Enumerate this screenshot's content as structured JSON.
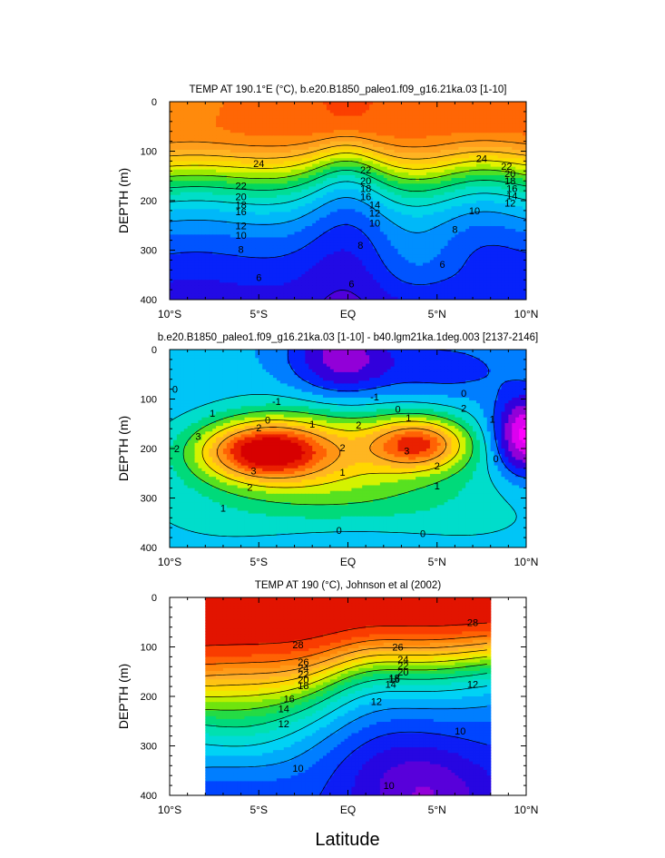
{
  "figure": {
    "xlabel": "Latitude"
  },
  "chart_data": [
    {
      "type": "heatmap",
      "title": "TEMP AT 190.1°E (°C), b.e20.B1850_paleo1.f09_g16.21ka.03 [1-10]",
      "ylabel": "DEPTH (m)",
      "xlim": [
        -10,
        10
      ],
      "ylim": [
        0,
        400
      ],
      "y_inverted": true,
      "x_ticks": [
        -10,
        -5,
        0,
        5,
        10
      ],
      "x_tick_labels": [
        "10°S",
        "5°S",
        "EQ",
        "5°N",
        "10°N"
      ],
      "y_ticks": [
        0,
        100,
        200,
        300,
        400
      ],
      "colorscale": "rainbow",
      "vmin": 4,
      "vmax": 28,
      "contour_levels": [
        6,
        8,
        10,
        12,
        14,
        16,
        18,
        20,
        22,
        24
      ],
      "contour_labels": [
        {
          "text": "24",
          "x": -5,
          "y": 125
        },
        {
          "text": "22",
          "x": -6,
          "y": 170
        },
        {
          "text": "20",
          "x": -6,
          "y": 192
        },
        {
          "text": "18",
          "x": -6,
          "y": 208
        },
        {
          "text": "16",
          "x": -6,
          "y": 222
        },
        {
          "text": "12",
          "x": -6,
          "y": 250
        },
        {
          "text": "10",
          "x": -6,
          "y": 270
        },
        {
          "text": "8",
          "x": -6,
          "y": 298
        },
        {
          "text": "6",
          "x": -5,
          "y": 355
        },
        {
          "text": "22",
          "x": 1,
          "y": 138
        },
        {
          "text": "20",
          "x": 1,
          "y": 160
        },
        {
          "text": "18",
          "x": 1,
          "y": 175
        },
        {
          "text": "16",
          "x": 1,
          "y": 192
        },
        {
          "text": "14",
          "x": 1.5,
          "y": 208
        },
        {
          "text": "12",
          "x": 1.5,
          "y": 225
        },
        {
          "text": "10",
          "x": 1.5,
          "y": 245
        },
        {
          "text": "8",
          "x": 0.7,
          "y": 290
        },
        {
          "text": "6",
          "x": 0.2,
          "y": 368
        },
        {
          "text": "24",
          "x": 7.5,
          "y": 115
        },
        {
          "text": "22",
          "x": 8.9,
          "y": 130
        },
        {
          "text": "20",
          "x": 9.1,
          "y": 145
        },
        {
          "text": "18",
          "x": 9.1,
          "y": 160
        },
        {
          "text": "16",
          "x": 9.2,
          "y": 175
        },
        {
          "text": "14",
          "x": 9.2,
          "y": 190
        },
        {
          "text": "12",
          "x": 9.1,
          "y": 205
        },
        {
          "text": "10",
          "x": 7.1,
          "y": 220
        },
        {
          "text": "8",
          "x": 6,
          "y": 258
        },
        {
          "text": "6",
          "x": 5.3,
          "y": 328
        }
      ]
    },
    {
      "type": "heatmap",
      "title": "b.e20.B1850_paleo1.f09_g16.21ka.03 [1-10] - b40.lgm21ka.1deg.003 [2137-2146]",
      "ylabel": "DEPTH (m)",
      "xlim": [
        -10,
        10
      ],
      "ylim": [
        0,
        400
      ],
      "y_inverted": true,
      "x_ticks": [
        -10,
        -5,
        0,
        5,
        10
      ],
      "x_tick_labels": [
        "10°S",
        "5°S",
        "EQ",
        "5°N",
        "10°N"
      ],
      "y_ticks": [
        0,
        100,
        200,
        300,
        400
      ],
      "colorscale": "rainbow",
      "vmin": -3,
      "vmax": 4.5,
      "contour_levels": [
        -1,
        0,
        1,
        2,
        3
      ],
      "contour_labels": [
        {
          "text": "0",
          "x": -9.7,
          "y": 80
        },
        {
          "text": "1",
          "x": -7.6,
          "y": 128
        },
        {
          "text": "2",
          "x": -9.6,
          "y": 200
        },
        {
          "text": "3",
          "x": -8.4,
          "y": 175
        },
        {
          "text": "-1",
          "x": -4,
          "y": 105
        },
        {
          "text": "0",
          "x": -4.5,
          "y": 142
        },
        {
          "text": "2",
          "x": -5,
          "y": 158
        },
        {
          "text": "3",
          "x": -5.3,
          "y": 245
        },
        {
          "text": "2",
          "x": -5.5,
          "y": 278
        },
        {
          "text": "1",
          "x": -7,
          "y": 320
        },
        {
          "text": "1",
          "x": -2,
          "y": 150
        },
        {
          "text": "2",
          "x": 0.6,
          "y": 152
        },
        {
          "text": "2",
          "x": -0.3,
          "y": 198
        },
        {
          "text": "1",
          "x": -0.3,
          "y": 248
        },
        {
          "text": "-1",
          "x": 1.5,
          "y": 95
        },
        {
          "text": "0",
          "x": 2.8,
          "y": 120
        },
        {
          "text": "1",
          "x": 3.4,
          "y": 138
        },
        {
          "text": "3",
          "x": 3.3,
          "y": 205
        },
        {
          "text": "2",
          "x": 5,
          "y": 235
        },
        {
          "text": "1",
          "x": 5,
          "y": 275
        },
        {
          "text": "0",
          "x": 6.5,
          "y": 88
        },
        {
          "text": "2",
          "x": 6.5,
          "y": 118
        },
        {
          "text": "1",
          "x": 8.1,
          "y": 140
        },
        {
          "text": "0",
          "x": 8.3,
          "y": 220
        },
        {
          "text": "0",
          "x": -0.5,
          "y": 365
        },
        {
          "text": "0",
          "x": 4.2,
          "y": 372
        }
      ]
    },
    {
      "type": "heatmap",
      "title": "TEMP AT 190 (°C), Johnson et al (2002)",
      "ylabel": "DEPTH (m)",
      "xlim": [
        -10,
        10
      ],
      "ylim": [
        0,
        400
      ],
      "y_inverted": true,
      "x_ticks": [
        -10,
        -5,
        0,
        5,
        10
      ],
      "x_tick_labels": [
        "10°S",
        "5°S",
        "EQ",
        "5°N",
        "10°N"
      ],
      "y_ticks": [
        0,
        100,
        200,
        300,
        400
      ],
      "data_xlim": [
        -8,
        8
      ],
      "colorscale": "rainbow",
      "vmin": 4,
      "vmax": 29,
      "contour_levels": [
        10,
        12,
        14,
        16,
        18,
        20,
        22,
        24,
        26,
        28
      ],
      "contour_labels": [
        {
          "text": "28",
          "x": -2.8,
          "y": 95
        },
        {
          "text": "26",
          "x": -2.5,
          "y": 130
        },
        {
          "text": "24",
          "x": -2.5,
          "y": 142
        },
        {
          "text": "22",
          "x": -2.5,
          "y": 155
        },
        {
          "text": "20",
          "x": -2.5,
          "y": 166
        },
        {
          "text": "18",
          "x": -2.5,
          "y": 178
        },
        {
          "text": "16",
          "x": -3.3,
          "y": 205
        },
        {
          "text": "14",
          "x": -3.6,
          "y": 225
        },
        {
          "text": "12",
          "x": -3.6,
          "y": 255
        },
        {
          "text": "10",
          "x": -2.8,
          "y": 345
        },
        {
          "text": "26",
          "x": 2.8,
          "y": 100
        },
        {
          "text": "24",
          "x": 3.1,
          "y": 125
        },
        {
          "text": "22",
          "x": 3.1,
          "y": 138
        },
        {
          "text": "20",
          "x": 3.1,
          "y": 150
        },
        {
          "text": "18",
          "x": 2.6,
          "y": 162
        },
        {
          "text": "16",
          "x": 2.6,
          "y": 165
        },
        {
          "text": "14",
          "x": 2.4,
          "y": 175
        },
        {
          "text": "12",
          "x": 1.6,
          "y": 210
        },
        {
          "text": "28",
          "x": 7,
          "y": 50
        },
        {
          "text": "12",
          "x": 7,
          "y": 175
        },
        {
          "text": "10",
          "x": 6.3,
          "y": 270
        },
        {
          "text": "10",
          "x": 2.3,
          "y": 380
        }
      ]
    }
  ]
}
